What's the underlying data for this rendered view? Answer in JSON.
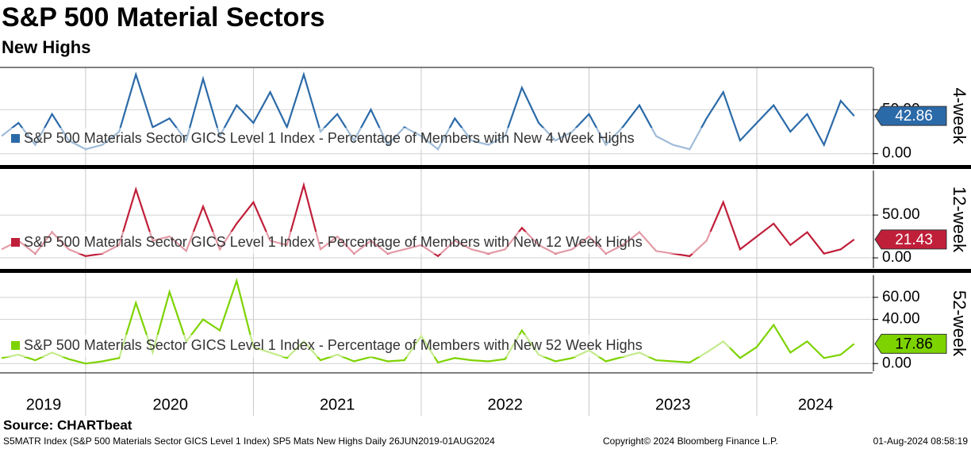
{
  "title": "S&P 500 Material Sectors",
  "subtitle": "New Highs",
  "footer": {
    "source": "Source: CHARTbeat",
    "description": "S5MATR Index (S&P 500 Materials Sector GICS Level 1 Index) SP5 Mats New Highs  Daily 26JUN2019-01AUG2024",
    "copyright": "Copyright© 2024 Bloomberg Finance L.P.",
    "timestamp": "01-Aug-2024 08:58:19"
  },
  "x_axis": {
    "xlim": [
      2019.49,
      2024.69
    ],
    "xticks": [
      {
        "value": 2019.75,
        "label": "2019"
      },
      {
        "value": 2020.505,
        "label": "2020"
      },
      {
        "value": 2021.5,
        "label": "2021"
      },
      {
        "value": 2022.5,
        "label": "2022"
      },
      {
        "value": 2023.5,
        "label": "2023"
      },
      {
        "value": 2024.35,
        "label": "2024"
      }
    ],
    "year_separators": [
      2020,
      2021,
      2022,
      2023,
      2024
    ]
  },
  "chart_data": [
    {
      "type": "line",
      "panel_label": "4-week",
      "ylim": [
        -12,
        98
      ],
      "yticks": [
        {
          "value": 0,
          "label": "0.00"
        },
        {
          "value": 50,
          "label": "50.00"
        }
      ],
      "x": [
        2019.5,
        2019.6,
        2019.7,
        2019.8,
        2019.9,
        2020.0,
        2020.1,
        2020.2,
        2020.3,
        2020.4,
        2020.5,
        2020.6,
        2020.7,
        2020.8,
        2020.9,
        2021.0,
        2021.1,
        2021.2,
        2021.3,
        2021.4,
        2021.5,
        2021.6,
        2021.7,
        2021.8,
        2021.9,
        2022.0,
        2022.1,
        2022.2,
        2022.3,
        2022.4,
        2022.5,
        2022.6,
        2022.7,
        2022.8,
        2022.9,
        2023.0,
        2023.1,
        2023.2,
        2023.3,
        2023.4,
        2023.5,
        2023.6,
        2023.7,
        2023.8,
        2023.9,
        2024.0,
        2024.1,
        2024.2,
        2024.3,
        2024.4,
        2024.5,
        2024.58
      ],
      "series": [
        {
          "name": "S&P 500 Materials Sector GICS Level 1 Index - Percentage of Members with New 4 Week Highs",
          "color": "#2b6aa8",
          "values": [
            20,
            35,
            10,
            45,
            15,
            5,
            10,
            25,
            90,
            30,
            40,
            15,
            85,
            20,
            55,
            35,
            70,
            30,
            90,
            25,
            45,
            15,
            50,
            10,
            30,
            20,
            5,
            40,
            15,
            10,
            20,
            75,
            35,
            15,
            25,
            45,
            10,
            30,
            55,
            20,
            10,
            5,
            40,
            70,
            15,
            35,
            55,
            25,
            45,
            10,
            60,
            42.86
          ]
        }
      ]
    },
    {
      "type": "line",
      "panel_label": "12-week",
      "ylim": [
        -12,
        102
      ],
      "yticks": [
        {
          "value": 0,
          "label": "0.00"
        },
        {
          "value": 50,
          "label": "50.00"
        }
      ],
      "x": [
        2019.5,
        2019.6,
        2019.7,
        2019.8,
        2019.9,
        2020.0,
        2020.1,
        2020.2,
        2020.3,
        2020.4,
        2020.5,
        2020.6,
        2020.7,
        2020.8,
        2020.9,
        2021.0,
        2021.1,
        2021.2,
        2021.3,
        2021.4,
        2021.5,
        2021.6,
        2021.7,
        2021.8,
        2021.9,
        2022.0,
        2022.1,
        2022.2,
        2022.3,
        2022.4,
        2022.5,
        2022.6,
        2022.7,
        2022.8,
        2022.9,
        2023.0,
        2023.1,
        2023.2,
        2023.3,
        2023.4,
        2023.5,
        2023.6,
        2023.7,
        2023.8,
        2023.9,
        2024.0,
        2024.1,
        2024.2,
        2024.3,
        2024.4,
        2024.5,
        2024.58
      ],
      "series": [
        {
          "name": "S&P 500 Materials Sector GICS Level 1 Index - Percentage of Members with New 12 Week Highs",
          "color": "#c01f3a",
          "values": [
            10,
            20,
            5,
            30,
            10,
            2,
            5,
            15,
            80,
            20,
            25,
            8,
            60,
            10,
            40,
            65,
            20,
            15,
            85,
            10,
            25,
            5,
            20,
            5,
            10,
            15,
            2,
            20,
            10,
            5,
            10,
            35,
            15,
            5,
            10,
            25,
            5,
            15,
            30,
            8,
            5,
            2,
            20,
            65,
            10,
            25,
            40,
            15,
            30,
            5,
            10,
            21.43
          ]
        }
      ]
    },
    {
      "type": "line",
      "panel_label": "52-week",
      "ylim": [
        -7,
        80
      ],
      "yticks": [
        {
          "value": 0,
          "label": "0.00"
        },
        {
          "value": 40,
          "label": "40.00"
        },
        {
          "value": 60,
          "label": "60.00"
        }
      ],
      "x": [
        2019.5,
        2019.6,
        2019.7,
        2019.8,
        2019.9,
        2020.0,
        2020.1,
        2020.2,
        2020.3,
        2020.4,
        2020.5,
        2020.6,
        2020.7,
        2020.8,
        2020.9,
        2021.0,
        2021.1,
        2021.2,
        2021.3,
        2021.4,
        2021.5,
        2021.6,
        2021.7,
        2021.8,
        2021.9,
        2022.0,
        2022.1,
        2022.2,
        2022.3,
        2022.4,
        2022.5,
        2022.6,
        2022.7,
        2022.8,
        2022.9,
        2023.0,
        2023.1,
        2023.2,
        2023.3,
        2023.4,
        2023.5,
        2023.6,
        2023.7,
        2023.8,
        2023.9,
        2024.0,
        2024.1,
        2024.2,
        2024.3,
        2024.4,
        2024.5,
        2024.58
      ],
      "series": [
        {
          "name": "S&P 500 Materials Sector GICS Level 1 Index - Percentage of Members with New 52 Week Highs",
          "color": "#7dd300",
          "values": [
            5,
            8,
            3,
            10,
            4,
            0,
            2,
            5,
            55,
            10,
            65,
            20,
            40,
            30,
            75,
            15,
            10,
            5,
            20,
            3,
            8,
            2,
            6,
            2,
            3,
            25,
            1,
            5,
            3,
            2,
            4,
            30,
            8,
            2,
            5,
            12,
            2,
            6,
            10,
            3,
            2,
            1,
            10,
            20,
            5,
            15,
            35,
            10,
            20,
            5,
            8,
            17.86
          ]
        }
      ]
    }
  ]
}
